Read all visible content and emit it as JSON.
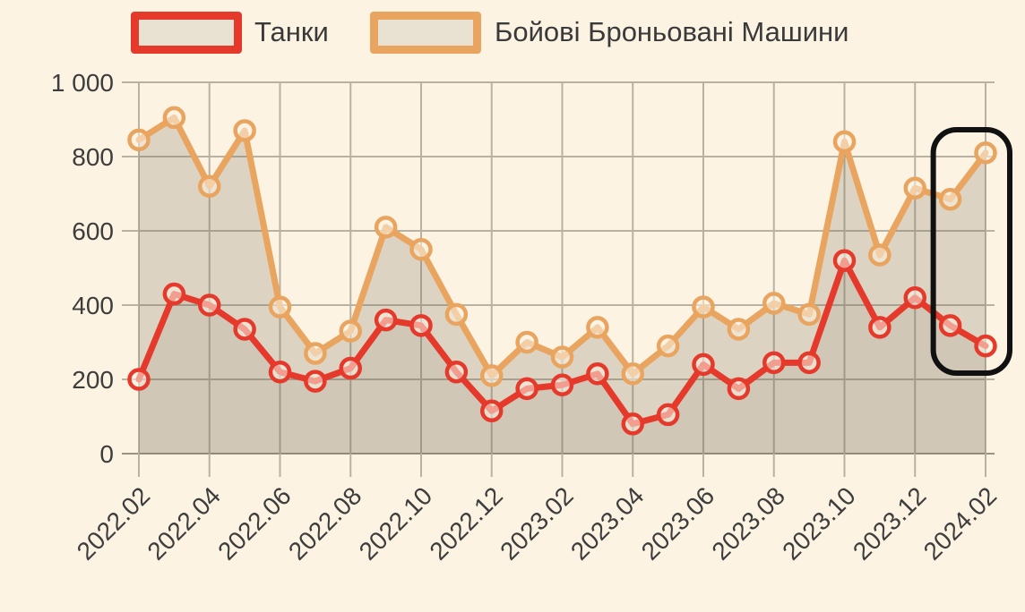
{
  "legend": {
    "items": [
      {
        "label": "Танки",
        "color": "#e5392b"
      },
      {
        "label": "Бойові Броньовані Машини",
        "color": "#e9a45f"
      }
    ]
  },
  "colors": {
    "background": "#fcf3e2",
    "grid": "#b9b2a2",
    "zero_line": "#9a9383",
    "axis_text": "#3d3d3d",
    "area_fill_primary": "rgba(110,100,82,0.22)",
    "area_fill_secondary": "rgba(110,100,82,0.10)",
    "marker_fill": "rgba(252,243,227,0.55)",
    "annotation": "#111111"
  },
  "chart_data": {
    "type": "line",
    "title": "",
    "xlabel": "",
    "ylabel": "",
    "ylim": [
      0,
      1000
    ],
    "yticks": [
      0,
      200,
      400,
      600,
      800,
      1000
    ],
    "ytick_labels": [
      "0",
      "200",
      "400",
      "600",
      "800",
      "1 000"
    ],
    "xtick_every": 2,
    "grid": true,
    "legend_position": "top",
    "x": [
      "2022.02",
      "2022.03",
      "2022.04",
      "2022.05",
      "2022.06",
      "2022.07",
      "2022.08",
      "2022.09",
      "2022.10",
      "2022.11",
      "2022.12",
      "2023.01",
      "2023.02",
      "2023.03",
      "2023.04",
      "2023.05",
      "2023.06",
      "2023.07",
      "2023.08",
      "2023.09",
      "2023.10",
      "2023.11",
      "2023.12",
      "2024.01",
      "2024.02"
    ],
    "series": [
      {
        "name": "Бойові Броньовані Машини",
        "color": "#e9a45f",
        "values": [
          845,
          905,
          720,
          870,
          395,
          270,
          330,
          610,
          550,
          375,
          210,
          300,
          260,
          340,
          215,
          290,
          395,
          335,
          405,
          375,
          840,
          535,
          715,
          685,
          810
        ]
      },
      {
        "name": "Танки",
        "color": "#e5392b",
        "values": [
          200,
          430,
          400,
          335,
          220,
          195,
          230,
          360,
          345,
          220,
          115,
          175,
          185,
          215,
          80,
          105,
          240,
          175,
          245,
          245,
          520,
          340,
          420,
          345,
          290
        ]
      }
    ],
    "annotation": {
      "shape": "rounded-rect-highlight",
      "color": "#111111",
      "months_highlighted": [
        "2024.01",
        "2024.02"
      ]
    }
  }
}
